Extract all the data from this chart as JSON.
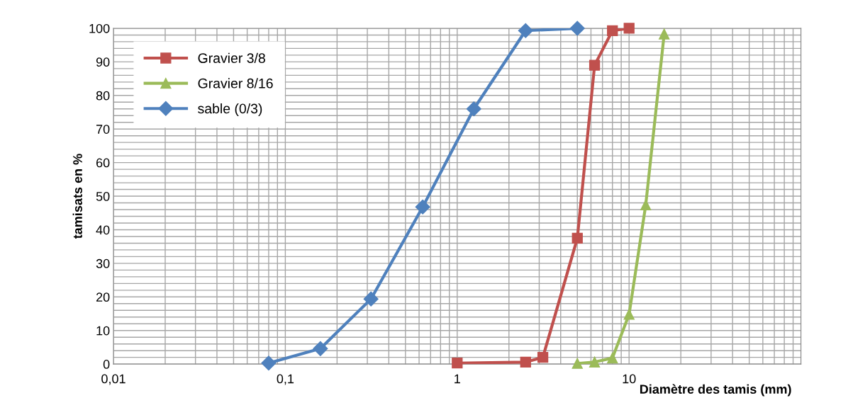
{
  "chart_data": {
    "type": "line",
    "xlabel": "Diamètre des tamis (mm)",
    "ylabel": "tamisats en %",
    "log": "x",
    "xlim": [
      0.01,
      100
    ],
    "xticks": [
      {
        "value": 0.01,
        "label": "0,01"
      },
      {
        "value": 0.1,
        "label": "0,1"
      },
      1,
      10,
      {
        "value": 100,
        "label": null
      }
    ],
    "ylim": [
      0,
      100
    ],
    "yticks": [
      0,
      10,
      20,
      30,
      40,
      50,
      60,
      70,
      80,
      90,
      100
    ],
    "grid": true,
    "legend": "top left",
    "line_style": "solid",
    "series": [
      {
        "name": "Gravier 3/8",
        "color": "#c0504d",
        "marker": "square",
        "x": [
          1,
          2.5,
          3.15,
          5,
          6.3,
          8,
          10
        ],
        "values": [
          0.3,
          0.6,
          2,
          37.5,
          89,
          99.3,
          100
        ]
      },
      {
        "name": "Gravier 8/16",
        "color": "#9bbb59",
        "marker": "triangle",
        "x": [
          5,
          6.3,
          8,
          10,
          12.5,
          16
        ],
        "values": [
          0.2,
          0.6,
          1.8,
          14.8,
          47.4,
          98.3
        ]
      },
      {
        "name": "sable (0/3)",
        "color": "#4f81bd",
        "marker": "diamond",
        "x": [
          0.08,
          0.16,
          0.315,
          0.63,
          1.25,
          2.5,
          5
        ],
        "values": [
          0.3,
          4.6,
          19.4,
          46.8,
          76,
          99.3,
          100
        ]
      }
    ]
  }
}
